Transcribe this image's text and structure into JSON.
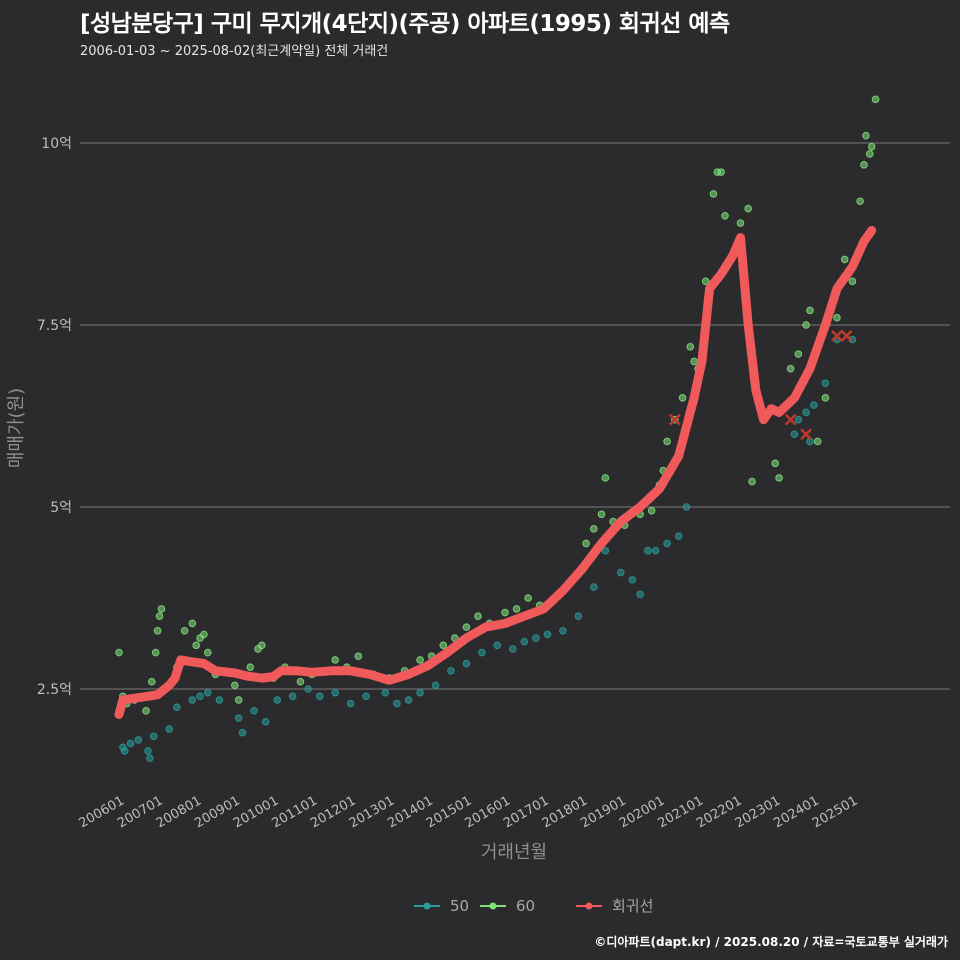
{
  "header": {
    "title": "[성남분당구] 구미 무지개(4단지)(주공) 아파트(1995) 회귀선 예측",
    "subtitle": "2006-01-03 ~ 2025-08-02(최근계약일) 전체 거래건"
  },
  "footer": {
    "caption": "©디아파트(dapt.kr) / 2025.08.20 / 자료=국토교통부 실거래가"
  },
  "chart_data": {
    "type": "scatter",
    "title": "[성남분당구] 구미 무지개(4단지)(주공) 아파트(1995) 회귀선 예측",
    "xlabel": "거래년월",
    "ylabel": "매매가(원)",
    "x_range": [
      2006.0,
      2025.8
    ],
    "ylim": [
      1.1,
      10.9
    ],
    "y_ticks": [
      {
        "value": 2.5,
        "label": "2.5억"
      },
      {
        "value": 5,
        "label": "5억"
      },
      {
        "value": 7.5,
        "label": "7.5억"
      },
      {
        "value": 10,
        "label": "10억"
      }
    ],
    "x_ticks": [
      {
        "value": 2006.0,
        "label": "200601"
      },
      {
        "value": 2007.0,
        "label": "200701"
      },
      {
        "value": 2008.0,
        "label": "200801"
      },
      {
        "value": 2009.0,
        "label": "200901"
      },
      {
        "value": 2010.0,
        "label": "201001"
      },
      {
        "value": 2011.0,
        "label": "201101"
      },
      {
        "value": 2012.0,
        "label": "201201"
      },
      {
        "value": 2013.0,
        "label": "201301"
      },
      {
        "value": 2014.0,
        "label": "201401"
      },
      {
        "value": 2015.0,
        "label": "201501"
      },
      {
        "value": 2016.0,
        "label": "201601"
      },
      {
        "value": 2017.0,
        "label": "201701"
      },
      {
        "value": 2018.0,
        "label": "201801"
      },
      {
        "value": 2019.0,
        "label": "201901"
      },
      {
        "value": 2020.0,
        "label": "202001"
      },
      {
        "value": 2021.0,
        "label": "202101"
      },
      {
        "value": 2022.0,
        "label": "202201"
      },
      {
        "value": 2023.0,
        "label": "202301"
      },
      {
        "value": 2024.0,
        "label": "202401"
      },
      {
        "value": 2025.0,
        "label": "202501"
      }
    ],
    "legend": [
      {
        "name": "50",
        "color": "#2a9d9a"
      },
      {
        "name": "60",
        "color": "#7fe07a"
      },
      {
        "name": "회귀선",
        "color": "#f05a5a"
      }
    ],
    "series": [
      {
        "name": "회귀선",
        "kind": "line",
        "color": "#f05a5a",
        "points": [
          [
            2006.0,
            2.15
          ],
          [
            2006.1,
            2.35
          ],
          [
            2006.5,
            2.38
          ],
          [
            2007.0,
            2.42
          ],
          [
            2007.3,
            2.55
          ],
          [
            2007.45,
            2.65
          ],
          [
            2007.6,
            2.9
          ],
          [
            2007.8,
            2.88
          ],
          [
            2008.2,
            2.85
          ],
          [
            2008.5,
            2.75
          ],
          [
            2009.0,
            2.72
          ],
          [
            2009.3,
            2.68
          ],
          [
            2009.7,
            2.65
          ],
          [
            2010.0,
            2.67
          ],
          [
            2010.2,
            2.75
          ],
          [
            2010.6,
            2.75
          ],
          [
            2011.0,
            2.73
          ],
          [
            2011.5,
            2.75
          ],
          [
            2012.0,
            2.75
          ],
          [
            2012.5,
            2.7
          ],
          [
            2013.0,
            2.62
          ],
          [
            2013.5,
            2.7
          ],
          [
            2014.0,
            2.82
          ],
          [
            2014.5,
            3.0
          ],
          [
            2015.0,
            3.2
          ],
          [
            2015.5,
            3.35
          ],
          [
            2016.0,
            3.4
          ],
          [
            2016.5,
            3.5
          ],
          [
            2017.0,
            3.6
          ],
          [
            2017.5,
            3.85
          ],
          [
            2018.0,
            4.15
          ],
          [
            2018.5,
            4.5
          ],
          [
            2019.0,
            4.8
          ],
          [
            2019.5,
            5.0
          ],
          [
            2020.0,
            5.25
          ],
          [
            2020.5,
            5.7
          ],
          [
            2020.9,
            6.5
          ],
          [
            2021.1,
            7.0
          ],
          [
            2021.3,
            8.0
          ],
          [
            2021.6,
            8.2
          ],
          [
            2021.9,
            8.45
          ],
          [
            2022.1,
            8.7
          ],
          [
            2022.3,
            7.5
          ],
          [
            2022.5,
            6.6
          ],
          [
            2022.7,
            6.2
          ],
          [
            2022.9,
            6.35
          ],
          [
            2023.1,
            6.3
          ],
          [
            2023.5,
            6.5
          ],
          [
            2023.9,
            6.9
          ],
          [
            2024.3,
            7.5
          ],
          [
            2024.6,
            8.0
          ],
          [
            2025.0,
            8.3
          ],
          [
            2025.3,
            8.65
          ],
          [
            2025.5,
            8.8
          ]
        ]
      },
      {
        "name": "50",
        "kind": "points",
        "color": "#2a9d9a",
        "points": [
          [
            2006.1,
            1.7
          ],
          [
            2006.15,
            1.65
          ],
          [
            2006.3,
            1.75
          ],
          [
            2006.5,
            1.8
          ],
          [
            2006.75,
            1.65
          ],
          [
            2006.8,
            1.55
          ],
          [
            2006.9,
            1.85
          ],
          [
            2007.3,
            1.95
          ],
          [
            2007.5,
            2.25
          ],
          [
            2007.9,
            2.35
          ],
          [
            2008.1,
            2.4
          ],
          [
            2008.3,
            2.45
          ],
          [
            2008.6,
            2.35
          ],
          [
            2009.1,
            2.1
          ],
          [
            2009.2,
            1.9
          ],
          [
            2009.5,
            2.2
          ],
          [
            2009.8,
            2.05
          ],
          [
            2010.1,
            2.35
          ],
          [
            2010.5,
            2.4
          ],
          [
            2010.9,
            2.5
          ],
          [
            2011.2,
            2.4
          ],
          [
            2011.6,
            2.45
          ],
          [
            2012.0,
            2.3
          ],
          [
            2012.4,
            2.4
          ],
          [
            2012.9,
            2.45
          ],
          [
            2013.2,
            2.3
          ],
          [
            2013.5,
            2.35
          ],
          [
            2013.8,
            2.45
          ],
          [
            2014.2,
            2.55
          ],
          [
            2014.6,
            2.75
          ],
          [
            2015.0,
            2.85
          ],
          [
            2015.4,
            3.0
          ],
          [
            2015.8,
            3.1
          ],
          [
            2016.2,
            3.05
          ],
          [
            2016.5,
            3.15
          ],
          [
            2016.8,
            3.2
          ],
          [
            2017.1,
            3.25
          ],
          [
            2017.5,
            3.3
          ],
          [
            2017.9,
            3.5
          ],
          [
            2018.3,
            3.9
          ],
          [
            2018.6,
            4.4
          ],
          [
            2019.0,
            4.1
          ],
          [
            2019.3,
            4.0
          ],
          [
            2019.5,
            3.8
          ],
          [
            2019.7,
            4.4
          ],
          [
            2019.9,
            4.4
          ],
          [
            2020.2,
            4.5
          ],
          [
            2020.5,
            4.6
          ],
          [
            2020.7,
            5.0
          ],
          [
            2023.5,
            6.0
          ],
          [
            2023.6,
            6.2
          ],
          [
            2023.8,
            6.3
          ],
          [
            2023.9,
            5.9
          ],
          [
            2024.0,
            6.4
          ],
          [
            2024.3,
            6.7
          ],
          [
            2024.6,
            7.3
          ],
          [
            2025.0,
            7.3
          ]
        ]
      },
      {
        "name": "60",
        "kind": "points",
        "color": "#7fe07a",
        "points": [
          [
            2006.0,
            3.0
          ],
          [
            2006.1,
            2.4
          ],
          [
            2006.2,
            2.3
          ],
          [
            2006.4,
            2.35
          ],
          [
            2006.7,
            2.2
          ],
          [
            2006.85,
            2.6
          ],
          [
            2006.95,
            3.0
          ],
          [
            2007.0,
            3.3
          ],
          [
            2007.05,
            3.5
          ],
          [
            2007.1,
            3.6
          ],
          [
            2007.2,
            2.5
          ],
          [
            2007.5,
            2.8
          ],
          [
            2007.7,
            3.3
          ],
          [
            2007.9,
            3.4
          ],
          [
            2008.0,
            3.1
          ],
          [
            2008.1,
            3.2
          ],
          [
            2008.2,
            3.25
          ],
          [
            2008.3,
            3.0
          ],
          [
            2008.5,
            2.7
          ],
          [
            2009.0,
            2.55
          ],
          [
            2009.1,
            2.35
          ],
          [
            2009.4,
            2.8
          ],
          [
            2009.6,
            3.05
          ],
          [
            2009.7,
            3.1
          ],
          [
            2010.0,
            2.65
          ],
          [
            2010.3,
            2.8
          ],
          [
            2010.7,
            2.6
          ],
          [
            2011.0,
            2.7
          ],
          [
            2011.3,
            2.75
          ],
          [
            2011.6,
            2.9
          ],
          [
            2011.9,
            2.8
          ],
          [
            2012.2,
            2.95
          ],
          [
            2012.6,
            2.7
          ],
          [
            2013.0,
            2.65
          ],
          [
            2013.4,
            2.75
          ],
          [
            2013.8,
            2.9
          ],
          [
            2014.1,
            2.95
          ],
          [
            2014.4,
            3.1
          ],
          [
            2014.7,
            3.2
          ],
          [
            2015.0,
            3.35
          ],
          [
            2015.3,
            3.5
          ],
          [
            2015.6,
            3.4
          ],
          [
            2016.0,
            3.55
          ],
          [
            2016.3,
            3.6
          ],
          [
            2016.6,
            3.75
          ],
          [
            2016.9,
            3.65
          ],
          [
            2017.2,
            3.7
          ],
          [
            2017.6,
            3.9
          ],
          [
            2017.9,
            4.1
          ],
          [
            2018.1,
            4.5
          ],
          [
            2018.3,
            4.7
          ],
          [
            2018.5,
            4.9
          ],
          [
            2018.6,
            5.4
          ],
          [
            2018.8,
            4.8
          ],
          [
            2019.1,
            4.75
          ],
          [
            2019.5,
            4.9
          ],
          [
            2019.8,
            4.95
          ],
          [
            2020.0,
            5.3
          ],
          [
            2020.1,
            5.5
          ],
          [
            2020.2,
            5.9
          ],
          [
            2020.4,
            6.2
          ],
          [
            2020.6,
            6.5
          ],
          [
            2020.8,
            7.2
          ],
          [
            2020.9,
            7.0
          ],
          [
            2021.0,
            6.9
          ],
          [
            2021.2,
            8.1
          ],
          [
            2021.4,
            9.3
          ],
          [
            2021.5,
            9.6
          ],
          [
            2021.6,
            9.6
          ],
          [
            2021.7,
            9.0
          ],
          [
            2022.0,
            8.5
          ],
          [
            2022.1,
            8.9
          ],
          [
            2022.3,
            9.1
          ],
          [
            2022.4,
            5.35
          ],
          [
            2023.0,
            5.6
          ],
          [
            2023.1,
            5.4
          ],
          [
            2023.4,
            6.9
          ],
          [
            2023.6,
            7.1
          ],
          [
            2023.8,
            7.5
          ],
          [
            2023.9,
            7.7
          ],
          [
            2024.1,
            5.9
          ],
          [
            2024.3,
            6.5
          ],
          [
            2024.6,
            7.6
          ],
          [
            2024.8,
            8.4
          ],
          [
            2025.0,
            8.1
          ],
          [
            2025.2,
            9.2
          ],
          [
            2025.3,
            9.7
          ],
          [
            2025.35,
            10.1
          ],
          [
            2025.45,
            9.85
          ],
          [
            2025.5,
            9.95
          ],
          [
            2025.6,
            10.6
          ]
        ]
      }
    ],
    "markers": [
      {
        "x": 2020.4,
        "y": 6.2
      },
      {
        "x": 2023.4,
        "y": 6.2
      },
      {
        "x": 2023.8,
        "y": 6.0
      },
      {
        "x": 2024.6,
        "y": 7.35
      },
      {
        "x": 2024.85,
        "y": 7.35
      }
    ]
  }
}
